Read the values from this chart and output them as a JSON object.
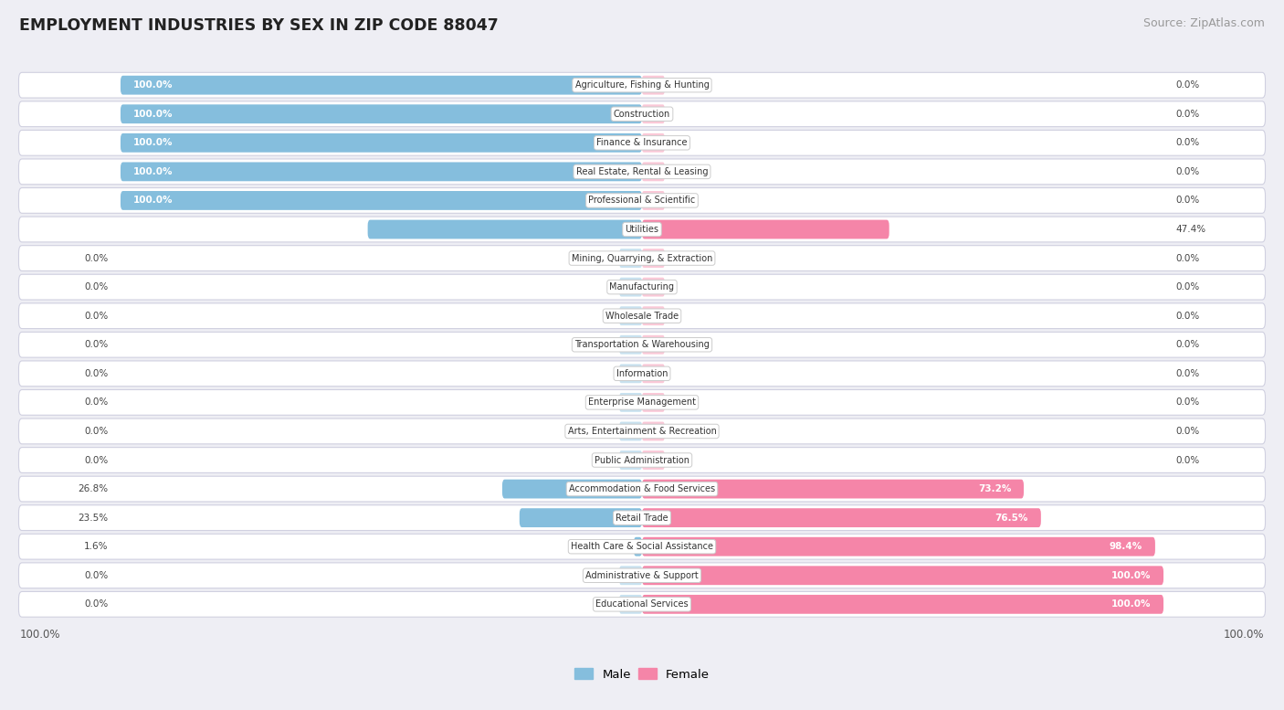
{
  "title": "EMPLOYMENT INDUSTRIES BY SEX IN ZIP CODE 88047",
  "source": "Source: ZipAtlas.com",
  "industries": [
    "Agriculture, Fishing & Hunting",
    "Construction",
    "Finance & Insurance",
    "Real Estate, Rental & Leasing",
    "Professional & Scientific",
    "Utilities",
    "Mining, Quarrying, & Extraction",
    "Manufacturing",
    "Wholesale Trade",
    "Transportation & Warehousing",
    "Information",
    "Enterprise Management",
    "Arts, Entertainment & Recreation",
    "Public Administration",
    "Accommodation & Food Services",
    "Retail Trade",
    "Health Care & Social Assistance",
    "Administrative & Support",
    "Educational Services"
  ],
  "male_pct": [
    100.0,
    100.0,
    100.0,
    100.0,
    100.0,
    52.6,
    0.0,
    0.0,
    0.0,
    0.0,
    0.0,
    0.0,
    0.0,
    0.0,
    26.8,
    23.5,
    1.6,
    0.0,
    0.0
  ],
  "female_pct": [
    0.0,
    0.0,
    0.0,
    0.0,
    0.0,
    47.4,
    0.0,
    0.0,
    0.0,
    0.0,
    0.0,
    0.0,
    0.0,
    0.0,
    73.2,
    76.5,
    98.4,
    100.0,
    100.0
  ],
  "male_color": "#85bedd",
  "female_color": "#f585a8",
  "bg_color": "#eeeef4",
  "row_color": "#ffffff",
  "figsize": [
    14.06,
    7.77
  ],
  "dpi": 100
}
